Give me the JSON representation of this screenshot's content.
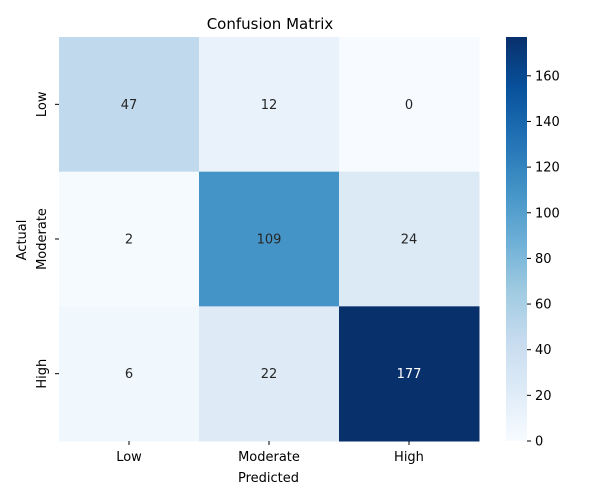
{
  "chart_data": {
    "type": "heatmap",
    "title": "Confusion Matrix",
    "xlabel": "Predicted",
    "ylabel": "Actual",
    "x_categories": [
      "Low",
      "Moderate",
      "High"
    ],
    "y_categories": [
      "Low",
      "Moderate",
      "High"
    ],
    "values": [
      [
        47,
        12,
        0
      ],
      [
        2,
        109,
        24
      ],
      [
        6,
        22,
        177
      ]
    ],
    "colormap": "Blues",
    "colorbar": {
      "min": 0,
      "max": 177,
      "ticks": [
        0,
        20,
        40,
        60,
        80,
        100,
        120,
        140,
        160
      ]
    }
  }
}
